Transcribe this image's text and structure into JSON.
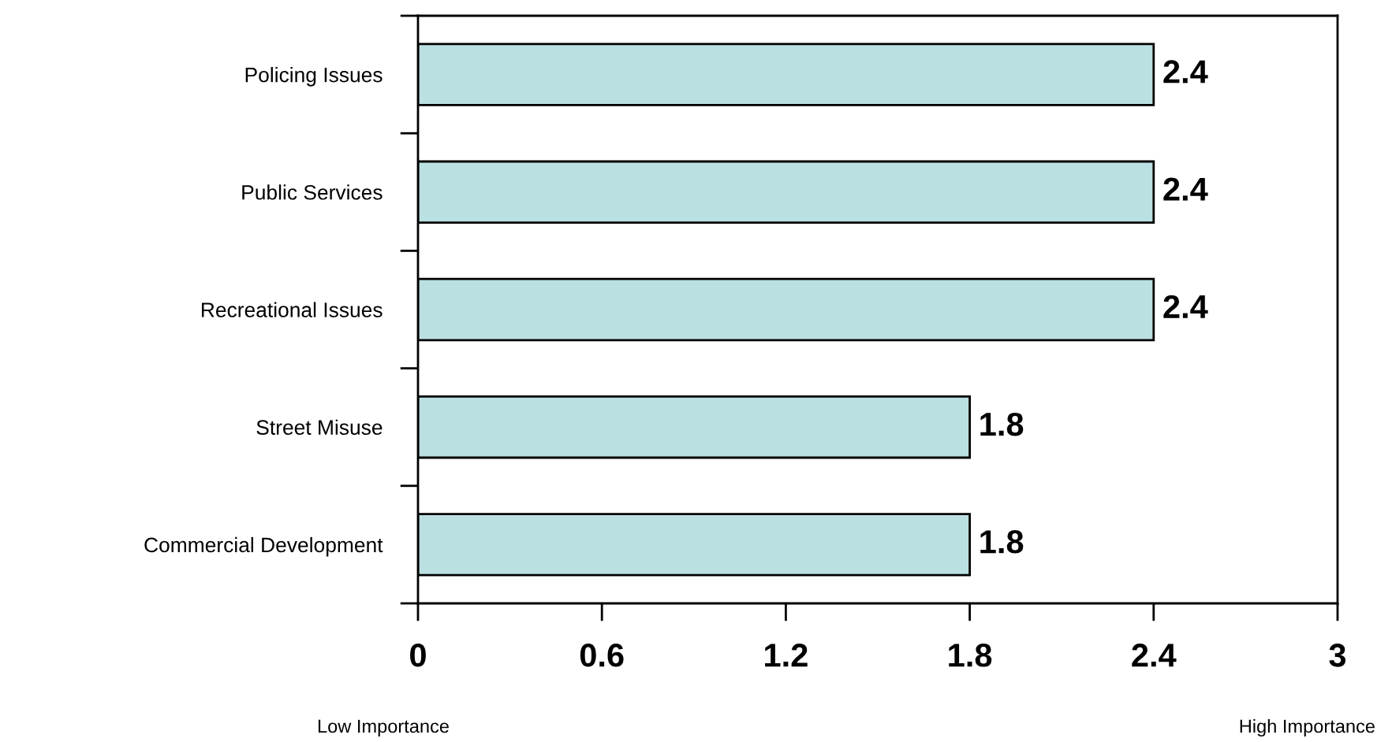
{
  "chart_data": {
    "type": "bar",
    "orientation": "horizontal",
    "categories": [
      "Policing Issues",
      "Public Services",
      "Recreational Issues",
      "Street Misuse",
      "Commercial Development"
    ],
    "values": [
      2.4,
      2.4,
      2.4,
      1.8,
      1.8
    ],
    "color": "#bae0e2",
    "xlim": [
      0,
      3
    ],
    "xticks": [
      0,
      0.6,
      1.2,
      1.8,
      2.4,
      3
    ],
    "data_labels": true,
    "grid": false,
    "annotations": [
      "Low Importance",
      "High Importance"
    ]
  }
}
